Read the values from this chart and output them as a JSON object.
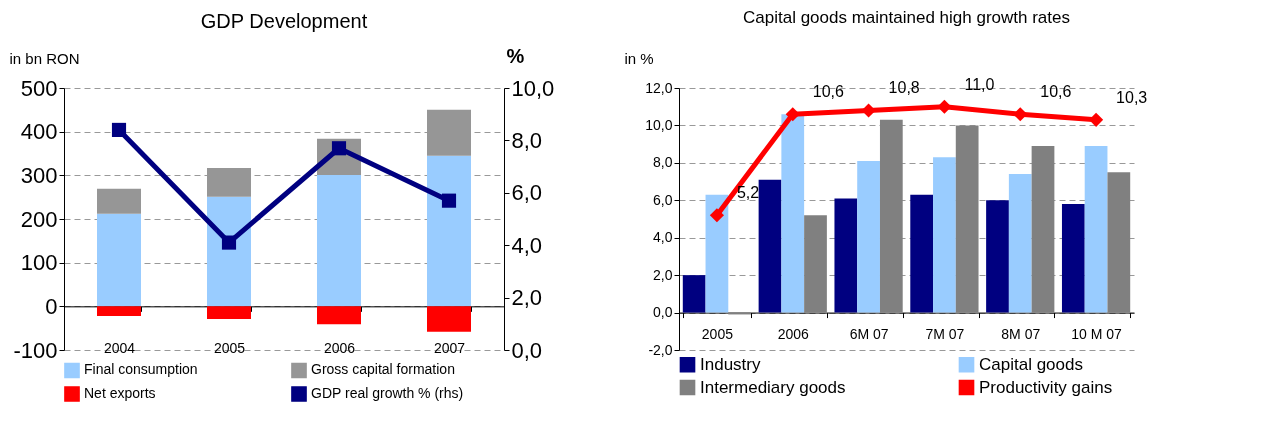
{
  "chart_data": [
    {
      "type": "bar",
      "title": "GDP Development",
      "ylabel": "in bn RON",
      "y2label": "%",
      "categories": [
        "2004",
        "2005",
        "2006",
        "2007"
      ],
      "stacked": true,
      "ylim": [
        -100,
        500
      ],
      "yticks": [
        -100,
        0,
        100,
        200,
        300,
        400,
        500
      ],
      "y2lim": [
        0,
        10
      ],
      "y2ticks": [
        {
          "value": 0,
          "label": "0,0"
        },
        {
          "value": 2,
          "label": "2,0"
        },
        {
          "value": 4,
          "label": "4,0"
        },
        {
          "value": 6,
          "label": "6,0"
        },
        {
          "value": 8,
          "label": "8,0"
        },
        {
          "value": 10,
          "label": "10,0"
        }
      ],
      "grid": "y",
      "legend": "bottom",
      "marker": "square",
      "series": [
        {
          "name": "Final consumption",
          "color": "#99ccff",
          "values": [
            212,
            251,
            301,
            345
          ]
        },
        {
          "name": "Gross capital formation",
          "color": "#969696",
          "values": [
            57,
            66,
            83,
            105
          ]
        },
        {
          "name": "Net exports",
          "color": "#ff0000",
          "values": [
            -22,
            -29,
            -41,
            -58
          ]
        },
        {
          "name": "GDP real growth % (rhs)",
          "type": "line",
          "axis": "y2",
          "color": "#000080",
          "values": [
            8.4,
            4.1,
            7.7,
            5.7
          ]
        }
      ]
    },
    {
      "type": "bar",
      "title": "Capital goods maintained high growth rates",
      "ylabel": "in %",
      "categories": [
        "2005",
        "2006",
        "6M 07",
        "7M 07",
        "8M 07",
        "10 M 07"
      ],
      "ylim": [
        -2,
        12
      ],
      "yticks": [
        {
          "value": -2,
          "label": "-2,0"
        },
        {
          "value": 0,
          "label": "0,0"
        },
        {
          "value": 2,
          "label": "2,0"
        },
        {
          "value": 4,
          "label": "4,0"
        },
        {
          "value": 6,
          "label": "6,0"
        },
        {
          "value": 8,
          "label": "8,0"
        },
        {
          "value": 10,
          "label": "10,0"
        },
        {
          "value": 12,
          "label": "12,0"
        }
      ],
      "grid": "y",
      "legend": "bottom",
      "marker": "diamond",
      "series": [
        {
          "name": "Industry",
          "color": "#000080",
          "values": [
            2.0,
            7.1,
            6.1,
            6.3,
            6.0,
            5.8
          ]
        },
        {
          "name": "Capital goods",
          "color": "#99ccff",
          "values": [
            6.3,
            10.6,
            8.1,
            8.3,
            7.4,
            8.9
          ]
        },
        {
          "name": "Intermediary goods",
          "color": "#808080",
          "values": [
            -0.1,
            5.2,
            10.3,
            10.0,
            8.9,
            7.5
          ]
        },
        {
          "name": "Productivity gains",
          "type": "line",
          "color": "#ff0000",
          "values": [
            5.2,
            10.6,
            10.8,
            11.0,
            10.6,
            10.3
          ],
          "value_labels": [
            "5,2",
            "10,6",
            "10,8",
            "11,0",
            "10,6",
            "10,3"
          ]
        }
      ]
    }
  ]
}
